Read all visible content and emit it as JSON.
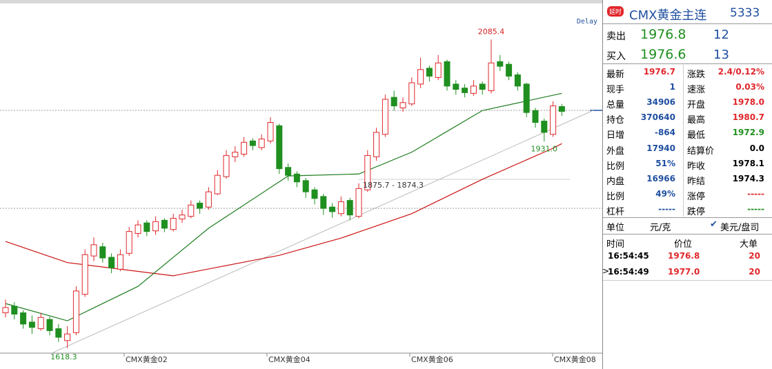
{
  "chart": {
    "type": "candlestick",
    "delay_label": "Delay",
    "ylim": [
      1611,
      2140
    ],
    "x_labels": [
      "CMX黄金02",
      "CMX黄金04",
      "CMX黄金06",
      "CMX黄金08"
    ],
    "annotations": [
      "2085.4",
      "1931.0",
      "1618.3",
      "1875.7 - 1874.3"
    ],
    "up_color": "#e0262b",
    "down_color": "#1f8f1f",
    "candles": [
      [
        1672,
        1692,
        1665,
        1680
      ],
      [
        1682,
        1688,
        1662,
        1670
      ],
      [
        1672,
        1676,
        1648,
        1655
      ],
      [
        1658,
        1668,
        1640,
        1650
      ],
      [
        1648,
        1672,
        1645,
        1665
      ],
      [
        1662,
        1666,
        1638,
        1645
      ],
      [
        1648,
        1655,
        1628,
        1635
      ],
      [
        1630,
        1652,
        1618.3,
        1640
      ],
      [
        1642,
        1712,
        1638,
        1705
      ],
      [
        1700,
        1768,
        1696,
        1760
      ],
      [
        1758,
        1786,
        1750,
        1775
      ],
      [
        1772,
        1778,
        1748,
        1755
      ],
      [
        1756,
        1762,
        1732,
        1740
      ],
      [
        1738,
        1768,
        1735,
        1760
      ],
      [
        1762,
        1802,
        1758,
        1795
      ],
      [
        1792,
        1812,
        1786,
        1805
      ],
      [
        1808,
        1812,
        1788,
        1795
      ],
      [
        1796,
        1818,
        1790,
        1810
      ],
      [
        1812,
        1815,
        1794,
        1800
      ],
      [
        1798,
        1822,
        1795,
        1815
      ],
      [
        1814,
        1828,
        1808,
        1820
      ],
      [
        1818,
        1842,
        1815,
        1835
      ],
      [
        1838,
        1842,
        1822,
        1830
      ],
      [
        1832,
        1862,
        1828,
        1855
      ],
      [
        1852,
        1888,
        1850,
        1880
      ],
      [
        1878,
        1918,
        1875,
        1910
      ],
      [
        1908,
        1924,
        1900,
        1915
      ],
      [
        1912,
        1938,
        1908,
        1930
      ],
      [
        1932,
        1936,
        1918,
        1925
      ],
      [
        1922,
        1942,
        1918,
        1935
      ],
      [
        1932,
        1968,
        1928,
        1960
      ],
      [
        1955,
        1958,
        1882,
        1890
      ],
      [
        1892,
        1898,
        1872,
        1880
      ],
      [
        1882,
        1886,
        1862,
        1870
      ],
      [
        1872,
        1876,
        1846,
        1855
      ],
      [
        1858,
        1862,
        1836,
        1845
      ],
      [
        1848,
        1852,
        1820,
        1830
      ],
      [
        1832,
        1838,
        1816,
        1825
      ],
      [
        1822,
        1848,
        1818,
        1840
      ],
      [
        1842,
        1846,
        1812,
        1820
      ],
      [
        1818,
        1868,
        1815,
        1860
      ],
      [
        1858,
        1918,
        1855,
        1910
      ],
      [
        1908,
        1952,
        1902,
        1945
      ],
      [
        1942,
        2002,
        1938,
        1995
      ],
      [
        1998,
        2008,
        1978,
        1985
      ],
      [
        1982,
        1998,
        1976,
        1990
      ],
      [
        1988,
        2028,
        1985,
        2020
      ],
      [
        2018,
        2058,
        2012,
        2040
      ],
      [
        2042,
        2046,
        2022,
        2030
      ],
      [
        2028,
        2062,
        2024,
        2050
      ],
      [
        2052,
        2055,
        2008,
        2015
      ],
      [
        2018,
        2024,
        2002,
        2010
      ],
      [
        2012,
        2018,
        1998,
        2005
      ],
      [
        2004,
        2024,
        2000,
        2015
      ],
      [
        2018,
        2022,
        2002,
        2010
      ],
      [
        2008,
        2085.4,
        2004,
        2050
      ],
      [
        2052,
        2062,
        2038,
        2045
      ],
      [
        2048,
        2052,
        2024,
        2030
      ],
      [
        2032,
        2036,
        2008,
        2015
      ],
      [
        2018,
        2020,
        1968,
        1975
      ],
      [
        1978,
        1982,
        1952,
        1960
      ],
      [
        1962,
        1966,
        1931.0,
        1945
      ],
      [
        1942,
        1992,
        1938,
        1985
      ],
      [
        1984,
        1988,
        1970,
        1976.7
      ]
    ],
    "moving_averages": [
      {
        "color": "#cc1111",
        "x": [
          0,
          7,
          19,
          31,
          38,
          46,
          54,
          62,
          63
        ],
        "values": [
          1780,
          1748,
          1728,
          1759,
          1785,
          1822,
          1874,
          1921,
          1928
        ]
      },
      {
        "color": "#1c7a1c",
        "x": [
          0,
          7,
          15,
          23,
          32,
          40,
          46,
          54,
          63
        ],
        "values": [
          1686,
          1660,
          1712,
          1800,
          1879,
          1882,
          1915,
          1978,
          2004
        ]
      }
    ]
  },
  "panel": {
    "badge": "延时",
    "title": "CMX黄金主连",
    "code": "5333",
    "quotes": [
      {
        "label": "卖出",
        "price": "1976.8",
        "volume": "12"
      },
      {
        "label": "买入",
        "price": "1976.6",
        "volume": "13"
      }
    ],
    "stats_left": [
      {
        "label": "最新",
        "value": "1976.7"
      },
      {
        "label": "现手",
        "value": "1"
      },
      {
        "label": "总量",
        "value": "34906"
      },
      {
        "label": "持仓",
        "value": "370640"
      },
      {
        "label": "日增",
        "value": "-864"
      },
      {
        "label": "外盘",
        "value": "17940"
      },
      {
        "label": "比例",
        "value": "51%"
      },
      {
        "label": "内盘",
        "value": "16966"
      },
      {
        "label": "比例",
        "value": "49%"
      },
      {
        "label": "杠杆",
        "value": "-----"
      }
    ],
    "stats_right": [
      {
        "label": "涨跌",
        "value": "2.4/0.12%"
      },
      {
        "label": "速涨",
        "value": "0.03%"
      },
      {
        "label": "开盘",
        "value": "1978.0"
      },
      {
        "label": "最高",
        "value": "1980.7"
      },
      {
        "label": "最低",
        "value": "1972.9"
      },
      {
        "label": "结算价",
        "value": "0.0"
      },
      {
        "label": "昨收",
        "value": "1978.1"
      },
      {
        "label": "昨结",
        "value": "1974.3"
      },
      {
        "label": "涨停",
        "value": "-----"
      },
      {
        "label": "跌停",
        "value": "-----"
      }
    ],
    "unit": {
      "label": "单位",
      "option1": "元/克",
      "option2": "美元/盘司"
    },
    "ticks": {
      "headers": [
        "时间",
        "价位",
        "大单"
      ],
      "rows": [
        [
          "16:54:45",
          "1976.8",
          "20"
        ],
        [
          "16:54:49",
          "1977.0",
          "20"
        ]
      ]
    }
  }
}
